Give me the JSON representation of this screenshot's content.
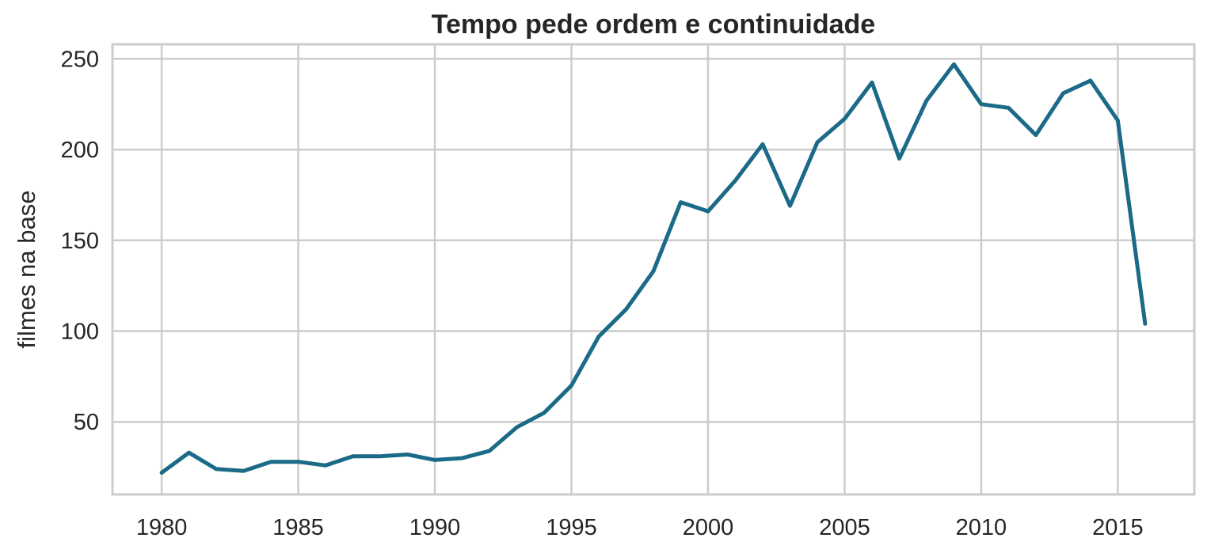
{
  "chart_data": {
    "type": "line",
    "title": "Tempo pede ordem e continuidade",
    "xlabel": "",
    "ylabel": "filmes na base",
    "xlim": [
      1978.2,
      2017.8
    ],
    "ylim": [
      10,
      258
    ],
    "x_ticks": [
      1980,
      1985,
      1990,
      1995,
      2000,
      2005,
      2010,
      2015
    ],
    "y_ticks": [
      50,
      100,
      150,
      200,
      250
    ],
    "grid": true,
    "legend": "none",
    "series": [
      {
        "color": "#1b6a87",
        "x": [
          1980,
          1981,
          1982,
          1983,
          1984,
          1985,
          1986,
          1987,
          1988,
          1989,
          1990,
          1991,
          1992,
          1993,
          1994,
          1995,
          1996,
          1997,
          1998,
          1999,
          2000,
          2001,
          2002,
          2003,
          2004,
          2005,
          2006,
          2007,
          2008,
          2009,
          2010,
          2011,
          2012,
          2013,
          2014,
          2015,
          2016
        ],
        "values": [
          22,
          33,
          24,
          23,
          28,
          28,
          26,
          31,
          31,
          32,
          29,
          30,
          34,
          47,
          55,
          70,
          97,
          112,
          133,
          171,
          166,
          183,
          203,
          169,
          204,
          217,
          237,
          195,
          227,
          247,
          225,
          223,
          208,
          231,
          238,
          216,
          104
        ]
      }
    ]
  }
}
